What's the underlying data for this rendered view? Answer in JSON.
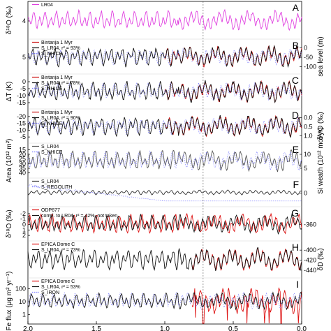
{
  "chart_data": {
    "type": "line",
    "xlabel": "",
    "xlim": [
      2.0,
      0.0
    ],
    "x_ticks": [
      "2.0",
      "1.5",
      "1.0",
      "0.5",
      "0.0"
    ],
    "x_tick_values": [
      2.0,
      1.5,
      1.0,
      0.5,
      0.0
    ],
    "reference_line_x": 0.72,
    "panels": [
      {
        "letter": "A",
        "left_label": "δ¹⁸O (‰)",
        "left_ticks": [
          "4"
        ],
        "right_label": "",
        "right_ticks": [],
        "series": [
          {
            "name": "LR04",
            "color": "#e040e0",
            "style": "solid",
            "amp": 0.9,
            "mean": 0.0,
            "trend": 0.35,
            "seed": 1
          }
        ]
      },
      {
        "letter": "B",
        "left_label": "",
        "left_ticks": [
          "5"
        ],
        "right_label": "sea level (m)",
        "right_ticks": [
          "0",
          "-50",
          "-100"
        ],
        "series": [
          {
            "name": "Bintanja 1 Myr",
            "color": "#cc1111",
            "style": "solid",
            "amp": 1.0,
            "mean": 0.0,
            "trend": 0.3,
            "seed": 2,
            "start": 1.0
          },
          {
            "name": "S_LR04, r² = 93%",
            "color": "#111111",
            "style": "solid",
            "amp": 1.0,
            "mean": 0.0,
            "trend": 0.3,
            "seed": 2
          },
          {
            "name": "S_NHICE",
            "color": "#8080ff",
            "style": "dotted",
            "amp": 0.8,
            "mean": 0.0,
            "trend": 0.3,
            "seed": 3
          }
        ]
      },
      {
        "letter": "C",
        "left_label": "ΔT (K)",
        "left_ticks": [
          "0",
          "-5",
          "-10",
          "-15"
        ],
        "right_label": "",
        "right_ticks": [],
        "series": [
          {
            "name": "Bintanja 1 Myr",
            "color": "#cc1111",
            "style": "solid",
            "amp": 1.0,
            "mean": 0.0,
            "trend": 0.3,
            "seed": 4,
            "start": 1.0
          },
          {
            "name": "S_LR04, r² = 78%",
            "color": "#111111",
            "style": "solid",
            "amp": 1.0,
            "mean": 0.0,
            "trend": 0.3,
            "seed": 4
          },
          {
            "name": "S_NHICE",
            "color": "#8080ff",
            "style": "dotted",
            "amp": 0.8,
            "mean": 0.0,
            "trend": 0.3,
            "seed": 5
          }
        ]
      },
      {
        "letter": "D",
        "left_label": "",
        "left_ticks": [
          "-20",
          "-15",
          "-10",
          "-5"
        ],
        "right_label": "δ¹⁸O (‰)",
        "right_ticks": [
          "0.0",
          "0.5",
          "1.0"
        ],
        "series": [
          {
            "name": "Bintanja 1 Myr",
            "color": "#cc1111",
            "style": "solid",
            "amp": 1.0,
            "mean": 0.0,
            "trend": 0.3,
            "seed": 6,
            "start": 1.0
          },
          {
            "name": "S_LR04, r² = 90%",
            "color": "#111111",
            "style": "solid",
            "amp": 1.0,
            "mean": 0.0,
            "trend": 0.3,
            "seed": 6
          },
          {
            "name": "S_NHICE",
            "color": "#8080ff",
            "style": "dotted",
            "amp": 0.8,
            "mean": 0.0,
            "trend": 0.3,
            "seed": 7
          }
        ]
      },
      {
        "letter": "E",
        "left_label": "Area (10¹² m²)",
        "left_ticks": [
          "15",
          "20",
          "25",
          "30",
          "35",
          "40"
        ],
        "right_label": "Si weath (10¹² mol/yr)",
        "right_ticks": [
          "10",
          "5"
        ],
        "series": [
          {
            "name": "S_LR04",
            "color": "#555555",
            "style": "solid",
            "amp": 1.0,
            "mean": 0.0,
            "trend": 0.4,
            "seed": 8
          },
          {
            "name": "S_NHICE",
            "color": "#8080ff",
            "style": "dotted",
            "amp": 0.9,
            "mean": 0.0,
            "trend": 0.4,
            "seed": 9
          }
        ]
      },
      {
        "letter": "F",
        "left_label": "",
        "left_ticks": [],
        "right_label": "",
        "right_ticks": [
          "0"
        ],
        "series": [
          {
            "name": "S_LR04",
            "color": "#333333",
            "style": "solid",
            "amp": 0.3,
            "mean": 0.0,
            "trend": 0.0,
            "seed": 10
          },
          {
            "name": "S_REGOLITH",
            "color": "#8080ff",
            "style": "dotted",
            "amp": 0.5,
            "mean": 0.0,
            "trend": 0.0,
            "seed": 11,
            "decay": 1
          }
        ]
      },
      {
        "letter": "G",
        "left_label": "δ¹⁸O (‰)",
        "left_ticks": [
          "-2",
          "-1",
          "0",
          "1",
          "2"
        ],
        "right_label": "",
        "right_ticks": [
          "-360"
        ],
        "series": [
          {
            "name": "ODP677",
            "color": "#dd1111",
            "style": "solid",
            "amp": 1.0,
            "mean": 0.0,
            "trend": 0.25,
            "seed": 12
          },
          {
            "name": "correl. to LR04, r² = 42%, not taken",
            "color": "#111111",
            "style": "solid",
            "amp": 0.9,
            "mean": 0.0,
            "trend": 0.25,
            "seed": 13
          }
        ]
      },
      {
        "letter": "H",
        "left_label": "",
        "left_ticks": [],
        "right_label": "δD (‰)",
        "right_ticks": [
          "-400",
          "-420",
          "-440"
        ],
        "series": [
          {
            "name": "EPICA Dome C",
            "color": "#dd1111",
            "style": "solid",
            "amp": 1.0,
            "mean": 0.0,
            "trend": 0.3,
            "seed": 14,
            "start": 0.8
          },
          {
            "name": "S_LR04, r² = 73%",
            "color": "#111111",
            "style": "solid",
            "amp": 1.0,
            "mean": 0.0,
            "trend": 0.3,
            "seed": 14
          }
        ]
      },
      {
        "letter": "I",
        "left_label": "Fe flux (μg m² yr⁻¹)",
        "left_ticks": [
          "100",
          "10",
          "1"
        ],
        "right_label": "",
        "right_ticks": [],
        "series": [
          {
            "name": "EPICA Dome C",
            "color": "#dd1111",
            "style": "solid",
            "amp": 1.0,
            "mean": 0.0,
            "trend": 0.3,
            "seed": 15,
            "start": 0.8,
            "spiky": 1
          },
          {
            "name": "S_LR04, r² = 53%",
            "color": "#111111",
            "style": "solid",
            "amp": 0.6,
            "mean": 0.0,
            "trend": 0.3,
            "seed": 16
          },
          {
            "name": "S_IRON",
            "color": "#8080ff",
            "style": "dotted",
            "amp": 0.6,
            "mean": 0.0,
            "trend": 0.3,
            "seed": 17
          }
        ]
      }
    ]
  }
}
